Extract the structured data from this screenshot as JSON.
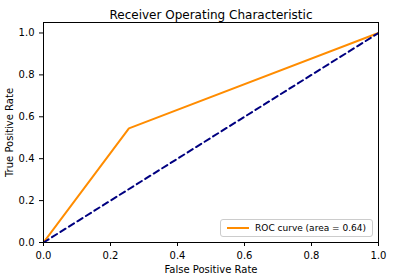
{
  "chart_data": {
    "type": "line",
    "title": "Receiver Operating Characteristic",
    "x_label": "False Positive Rate",
    "y_label": "True Positive Rate",
    "series": [
      {
        "name": "ROC curve (area = 0.64)",
        "color": "#ff8c00",
        "x": [
          0,
          0.255,
          1
        ],
        "values": [
          0,
          0.545,
          1
        ],
        "line_style": "solid"
      },
      {
        "color": "navy",
        "x": [
          0,
          1
        ],
        "values": [
          0,
          1
        ],
        "line_style": "dashed"
      }
    ],
    "xlim": [
      0,
      1
    ],
    "ylim": [
      0,
      1.05
    ],
    "xticks": [
      {
        "value": 0,
        "label": "0.0"
      },
      0.2,
      0.4,
      0.6,
      0.8,
      {
        "value": 1,
        "label": "1.0"
      }
    ],
    "yticks": [
      {
        "value": 0,
        "label": "0.0"
      },
      0.2,
      0.4,
      0.6,
      0.8,
      {
        "value": 1,
        "label": "1.0"
      }
    ],
    "grid": false,
    "legend": "lower right"
  }
}
